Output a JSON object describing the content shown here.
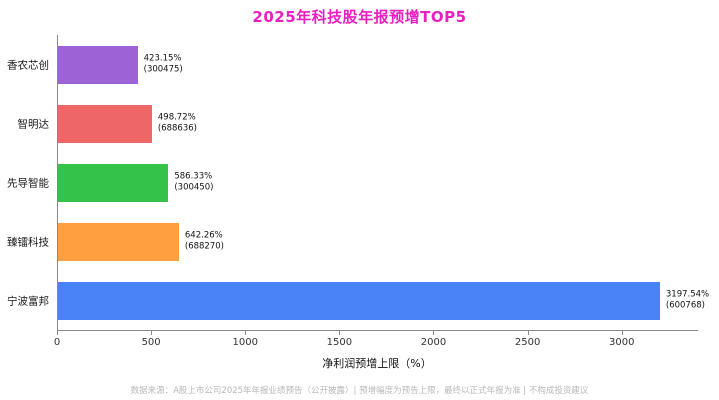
{
  "title": "2025年科技股年报预增TOP5",
  "title_color": "#ea1fc1",
  "xlabel": "净利润预增上限（%）",
  "footer": "数据来源：A股上市公司2025年年报业绩预告（公开披露）| 预增幅度为预告上限，最终以正式年报为准 | 不构成投资建议",
  "chart_data": {
    "type": "bar",
    "orientation": "horizontal",
    "title": "2025年科技股年报预增TOP5",
    "xlabel": "净利润预增上限（%）",
    "categories": [
      "香农芯创",
      "智明达",
      "先导智能",
      "臻镭科技",
      "宁波富邦"
    ],
    "values": [
      423.15,
      498.72,
      586.33,
      642.26,
      3197.54
    ],
    "value_labels": [
      "423.15%",
      "498.72%",
      "586.33%",
      "642.26%",
      "3197.54%"
    ],
    "code_labels": [
      "(300475)",
      "(688636)",
      "(300450)",
      "(688270)",
      "(600768)"
    ],
    "bar_colors": [
      "#9d62d6",
      "#ee6666",
      "#35c24a",
      "#ff9f40",
      "#4a82f7"
    ],
    "x_ticks": [
      0,
      500,
      1000,
      1500,
      2000,
      2500,
      3000
    ],
    "xlim": [
      0,
      3400
    ],
    "grid": false,
    "legend": "none"
  }
}
